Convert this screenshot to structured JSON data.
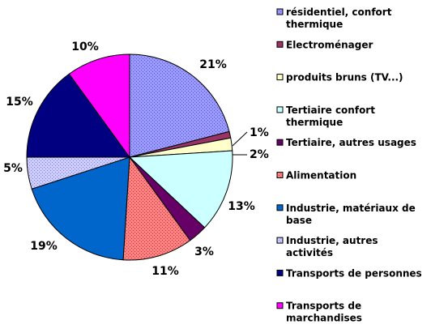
{
  "chart_data": {
    "type": "pie",
    "title": "",
    "legend_placement": "right",
    "slices": [
      {
        "label": "résidentiel, confort thermique",
        "value": 21,
        "display": "21%",
        "color": "#9999ff",
        "pattern": "dots"
      },
      {
        "label": "Electroménager",
        "value": 1,
        "display": "1%",
        "color": "#993366",
        "pattern": "none"
      },
      {
        "label": "produits bruns (TV...)",
        "value": 2,
        "display": "2%",
        "color": "#ffffcc",
        "pattern": "none"
      },
      {
        "label": "Tertiaire confort thermique",
        "value": 13,
        "display": "13%",
        "color": "#ccffff",
        "pattern": "none"
      },
      {
        "label": "Tertiaire, autres usages",
        "value": 3,
        "display": "3%",
        "color": "#660066",
        "pattern": "none"
      },
      {
        "label": "Alimentation",
        "value": 11,
        "display": "11%",
        "color": "#ff8080",
        "pattern": "dots"
      },
      {
        "label": "Industrie, matériaux de base",
        "value": 19,
        "display": "19%",
        "color": "#0066cc",
        "pattern": "none"
      },
      {
        "label": "Industrie, autres activités",
        "value": 5,
        "display": "5%",
        "color": "#ccccff",
        "pattern": "dots"
      },
      {
        "label": "Transports de personnes",
        "value": 15,
        "display": "15%",
        "color": "#000080",
        "pattern": "none"
      },
      {
        "label": "Transports de marchandises",
        "value": 10,
        "display": "10%",
        "color": "#ff00ff",
        "pattern": "none"
      }
    ]
  }
}
